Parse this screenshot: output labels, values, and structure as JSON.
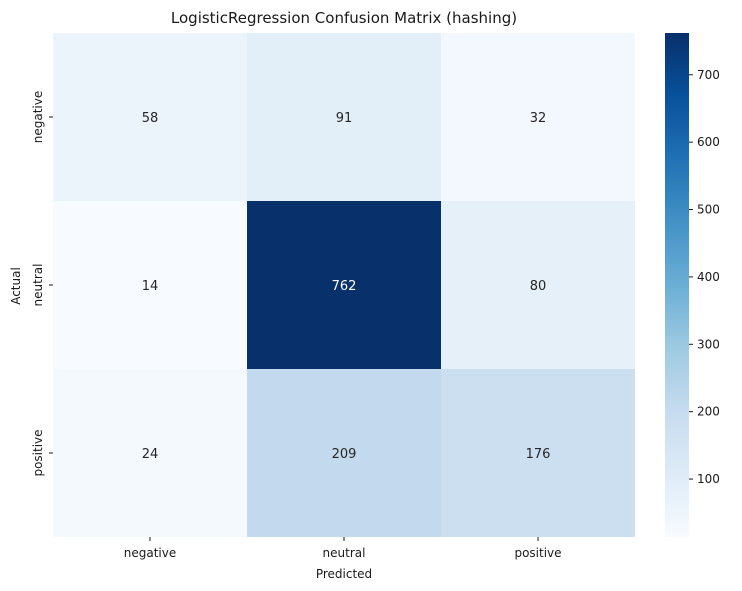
{
  "chart_data": {
    "type": "heatmap",
    "title": "LogisticRegression Confusion Matrix (hashing)",
    "xlabel": "Predicted",
    "ylabel": "Actual",
    "x_categories": [
      "negative",
      "neutral",
      "positive"
    ],
    "y_categories": [
      "negative",
      "neutral",
      "positive"
    ],
    "values": [
      [
        58,
        91,
        32
      ],
      [
        14,
        762,
        80
      ],
      [
        24,
        209,
        176
      ]
    ],
    "colormap": "Blues",
    "color_range": [
      14,
      762
    ],
    "colorbar_ticks": [
      100,
      200,
      300,
      400,
      500,
      600,
      700
    ],
    "colors": {
      "low": "#f7fbff",
      "high": "#08306b",
      "text_dark": "#262626",
      "text_light": "#ffffff"
    }
  }
}
